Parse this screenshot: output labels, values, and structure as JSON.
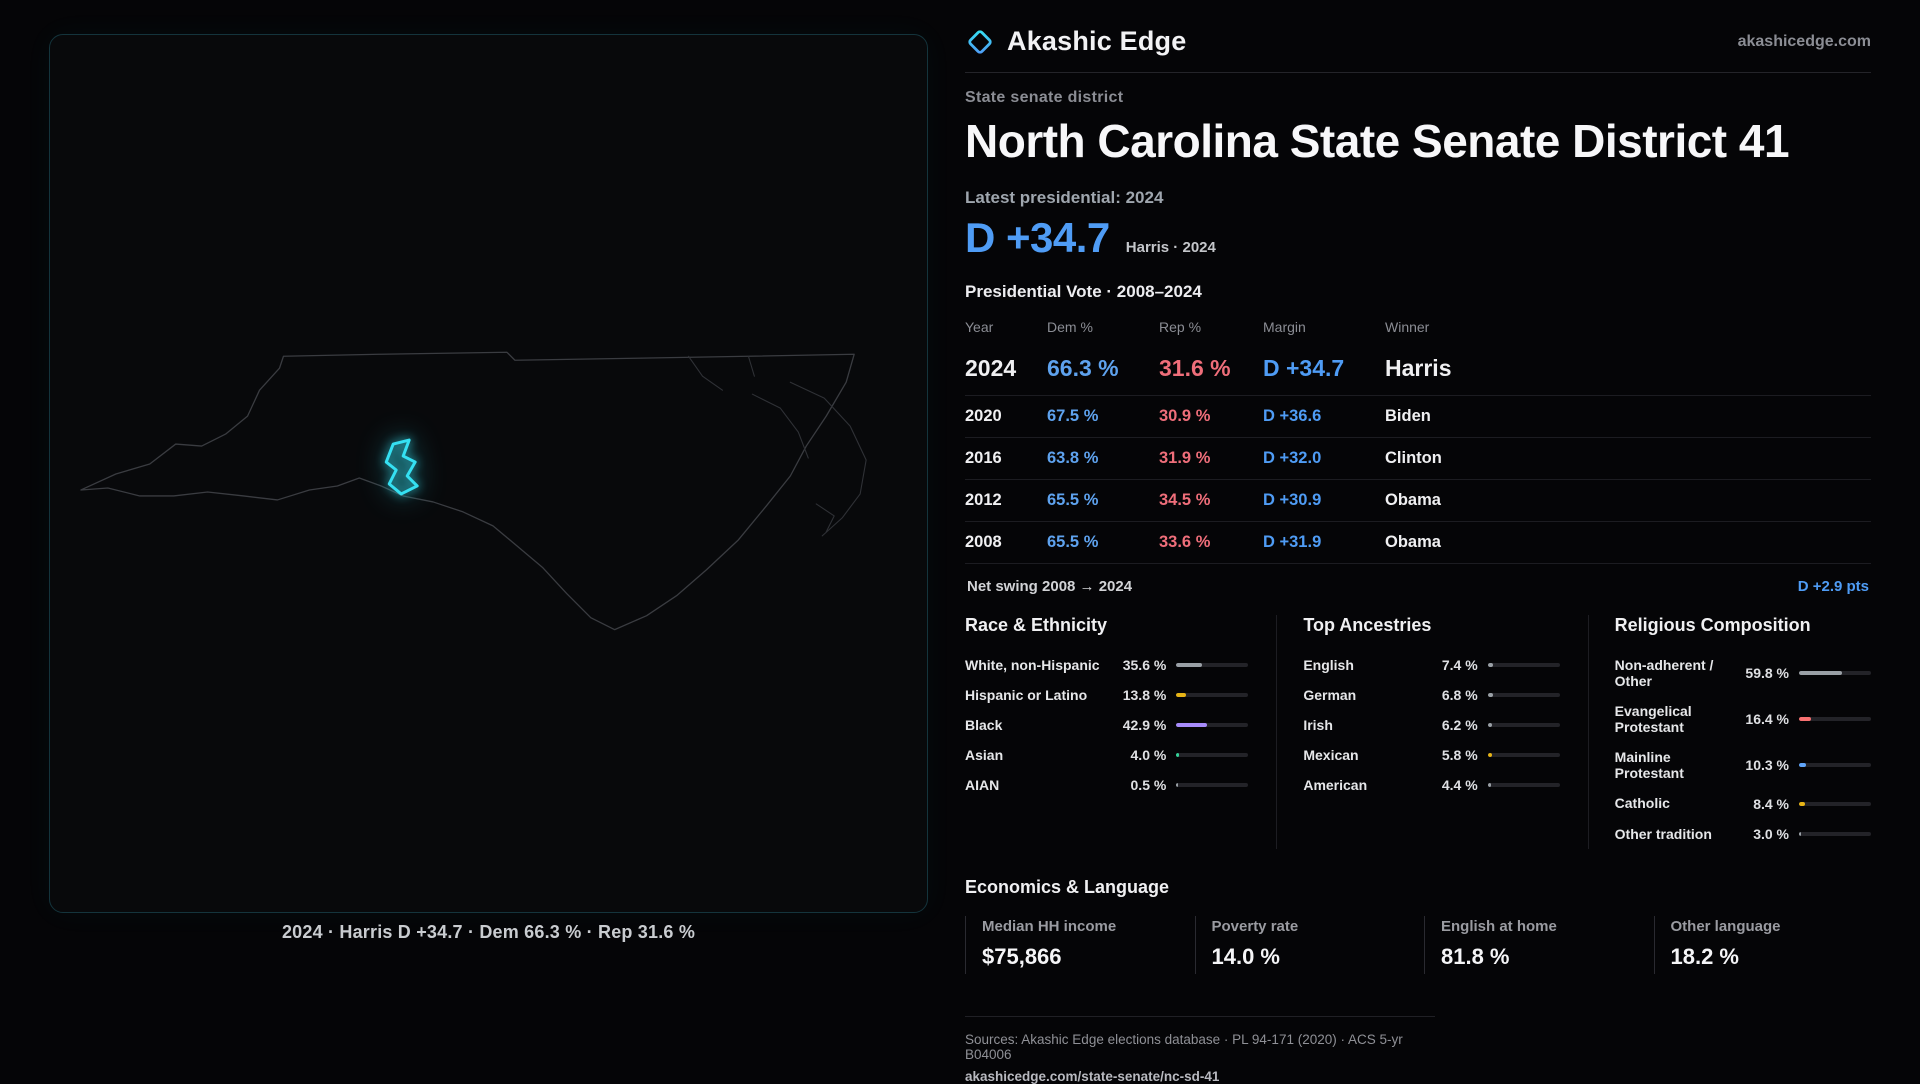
{
  "brand": {
    "name": "Akashic Edge",
    "domain": "akashicedge.com"
  },
  "colors": {
    "dem_blue": "#4f9cf5",
    "rep_red": "#ef6e7a",
    "district_cyan": "#35e0f2"
  },
  "map": {
    "caption": "2024 · Harris D +34.7 · Dem 66.3 % · Rep 31.6 %"
  },
  "page": {
    "kicker": "State senate district",
    "title": "North Carolina State Senate District 41",
    "latest_label": "Latest presidential: 2024",
    "headline_margin": "D +34.7",
    "headline_sub": "Harris · 2024",
    "table_title": "Presidential Vote · 2008–2024"
  },
  "election": {
    "headers": {
      "year": "Year",
      "dem": "Dem %",
      "rep": "Rep %",
      "margin": "Margin",
      "winner": "Winner"
    },
    "rows": [
      {
        "year": "2024",
        "dem": "66.3 %",
        "rep": "31.6 %",
        "margin": "D +34.7",
        "winner": "Harris"
      },
      {
        "year": "2020",
        "dem": "67.5 %",
        "rep": "30.9 %",
        "margin": "D +36.6",
        "winner": "Biden"
      },
      {
        "year": "2016",
        "dem": "63.8 %",
        "rep": "31.9 %",
        "margin": "D +32.0",
        "winner": "Clinton"
      },
      {
        "year": "2012",
        "dem": "65.5 %",
        "rep": "34.5 %",
        "margin": "D +30.9",
        "winner": "Obama"
      },
      {
        "year": "2008",
        "dem": "65.5 %",
        "rep": "33.6 %",
        "margin": "D +31.9",
        "winner": "Obama"
      }
    ],
    "net_swing_label": "Net swing 2008 → 2024",
    "net_swing_value": "D +2.9 pts"
  },
  "race": {
    "title": "Race & Ethnicity",
    "rows": [
      {
        "label": "White, non-Hispanic",
        "value": "35.6 %",
        "pct": 35.6,
        "color": "#9aa0a6"
      },
      {
        "label": "Hispanic or Latino",
        "value": "13.8 %",
        "pct": 13.8,
        "color": "#e7b416"
      },
      {
        "label": "Black",
        "value": "42.9 %",
        "pct": 42.9,
        "color": "#a78bfa"
      },
      {
        "label": "Asian",
        "value": "4.0 %",
        "pct": 4.0,
        "color": "#34d399"
      },
      {
        "label": "AIAN",
        "value": "0.5 %",
        "pct": 0.5,
        "color": "#9aa0a6"
      }
    ]
  },
  "ancestries": {
    "title": "Top Ancestries",
    "rows": [
      {
        "label": "English",
        "value": "7.4 %",
        "pct": 7.4,
        "color": "#9aa0a6"
      },
      {
        "label": "German",
        "value": "6.8 %",
        "pct": 6.8,
        "color": "#9aa0a6"
      },
      {
        "label": "Irish",
        "value": "6.2 %",
        "pct": 6.2,
        "color": "#9aa0a6"
      },
      {
        "label": "Mexican",
        "value": "5.8 %",
        "pct": 5.8,
        "color": "#e7b416"
      },
      {
        "label": "American",
        "value": "4.4 %",
        "pct": 4.4,
        "color": "#9aa0a6"
      }
    ]
  },
  "religion": {
    "title": "Religious Composition",
    "rows": [
      {
        "label": "Non-adherent / Other",
        "value": "59.8 %",
        "pct": 59.8,
        "color": "#9aa0a6"
      },
      {
        "label": "Evangelical Protestant",
        "value": "16.4 %",
        "pct": 16.4,
        "color": "#f87171"
      },
      {
        "label": "Mainline Protestant",
        "value": "10.3 %",
        "pct": 10.3,
        "color": "#60a5fa"
      },
      {
        "label": "Catholic",
        "value": "8.4 %",
        "pct": 8.4,
        "color": "#e7b416"
      },
      {
        "label": "Other tradition",
        "value": "3.0 %",
        "pct": 3.0,
        "color": "#9aa0a6"
      }
    ]
  },
  "economics": {
    "title": "Economics & Language",
    "stats": [
      {
        "label": "Median HH income",
        "value": "$75,866"
      },
      {
        "label": "Poverty rate",
        "value": "14.0 %"
      },
      {
        "label": "English at home",
        "value": "81.8 %"
      },
      {
        "label": "Other language",
        "value": "18.2 %"
      }
    ]
  },
  "footer": {
    "sources": "Sources: Akashic Edge elections database · PL 94-171 (2020) · ACS 5-yr B04006",
    "link": "akashicedge.com/state-senate/nc-sd-41"
  }
}
